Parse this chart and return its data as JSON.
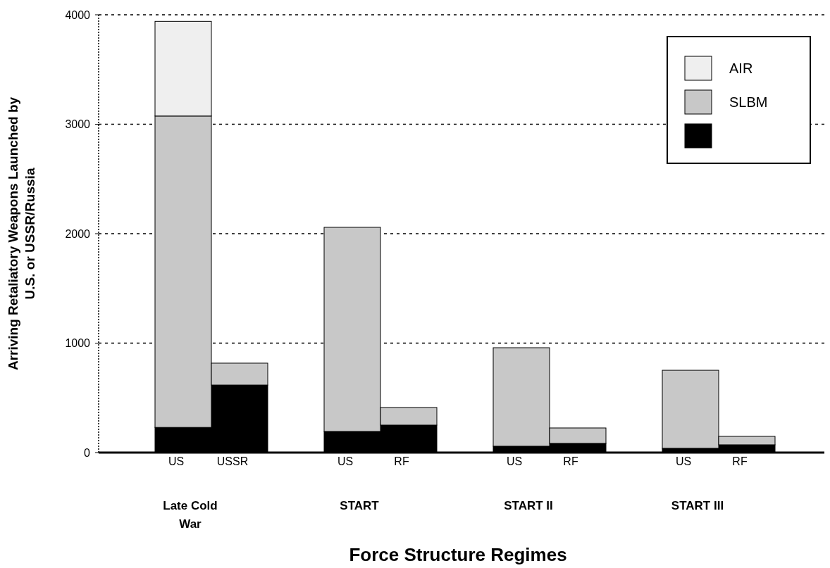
{
  "chart_data": {
    "type": "bar",
    "stacked": true,
    "xlabel": "Force Structure Regimes",
    "ylabel": "Arriving Retaliatory Weapons Launched by U.S. or USSR/Russia",
    "categories": [
      "US",
      "USSR",
      "US",
      "RF",
      "US",
      "RF",
      "US",
      "RF"
    ],
    "series": [
      {
        "color": "#000000",
        "values": [
          230,
          617,
          193,
          251,
          58,
          84,
          39,
          71
        ]
      },
      {
        "name": "SLBM",
        "color": "#c8c8c8",
        "values": [
          2845,
          200,
          1865,
          161,
          900,
          141,
          713,
          77
        ]
      },
      {
        "name": "AIR",
        "color": "#efefef",
        "values": [
          865,
          0,
          0,
          0,
          0,
          0,
          0,
          0
        ]
      }
    ],
    "ylim": [
      0,
      4000
    ],
    "yticks": [
      0,
      1000,
      2000,
      3000,
      4000
    ],
    "grid": "y",
    "legend": "top right",
    "annotations": [
      "Late Cold War",
      "START",
      "START II",
      "START III"
    ]
  }
}
